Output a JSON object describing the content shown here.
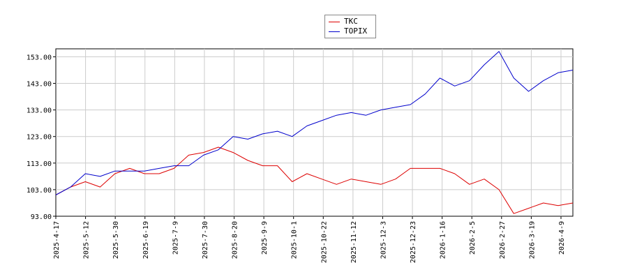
{
  "chart_data": {
    "type": "line",
    "title": "",
    "xlabel": "",
    "ylabel": "",
    "ylim": [
      93.0,
      156.0
    ],
    "yticks": [
      "93.00",
      "103.00",
      "113.00",
      "123.00",
      "133.00",
      "143.00",
      "153.00"
    ],
    "xticks": [
      "2025-4-17",
      "2025-5-12",
      "2025-5-30",
      "2025-6-19",
      "2025-7-9",
      "2025-7-30",
      "2025-8-20",
      "2025-9-9",
      "2025-10-1",
      "2025-10-22",
      "2025-11-12",
      "2025-12-3",
      "2025-12-23",
      "2026-1-16",
      "2026-2-5",
      "2026-2-27",
      "2026-3-19",
      "2026-4-9"
    ],
    "grid": true,
    "legend_position": "top-center",
    "x": [
      "2025-4-17",
      "2025-5-1",
      "2025-5-12",
      "2025-5-21",
      "2025-5-30",
      "2025-6-10",
      "2025-6-19",
      "2025-6-30",
      "2025-7-9",
      "2025-7-18",
      "2025-7-30",
      "2025-8-8",
      "2025-8-20",
      "2025-8-29",
      "2025-9-9",
      "2025-9-19",
      "2025-10-1",
      "2025-10-10",
      "2025-10-22",
      "2025-10-31",
      "2025-11-12",
      "2025-11-21",
      "2025-12-3",
      "2025-12-12",
      "2025-12-23",
      "2026-1-6",
      "2026-1-16",
      "2026-1-26",
      "2026-2-5",
      "2026-2-16",
      "2026-2-27",
      "2026-3-9",
      "2026-3-19",
      "2026-3-30",
      "2026-4-9",
      "2026-4-14"
    ],
    "series": [
      {
        "name": "TKC",
        "color": "#dd0000",
        "values": [
          101,
          104,
          106,
          104,
          109,
          111,
          109,
          109,
          111,
          116,
          117,
          119,
          117,
          114,
          112,
          112,
          106,
          109,
          107,
          105,
          107,
          106,
          105,
          107,
          111,
          111,
          111,
          109,
          105,
          107,
          103,
          94,
          96,
          98,
          97,
          98
        ]
      },
      {
        "name": "TOPIX",
        "color": "#0000cc",
        "values": [
          101,
          104,
          109,
          108,
          110,
          110,
          110,
          111,
          112,
          112,
          116,
          118,
          123,
          122,
          124,
          125,
          123,
          127,
          129,
          131,
          132,
          131,
          133,
          134,
          135,
          139,
          145,
          142,
          144,
          150,
          155,
          145,
          140,
          144,
          147,
          148
        ]
      }
    ]
  }
}
